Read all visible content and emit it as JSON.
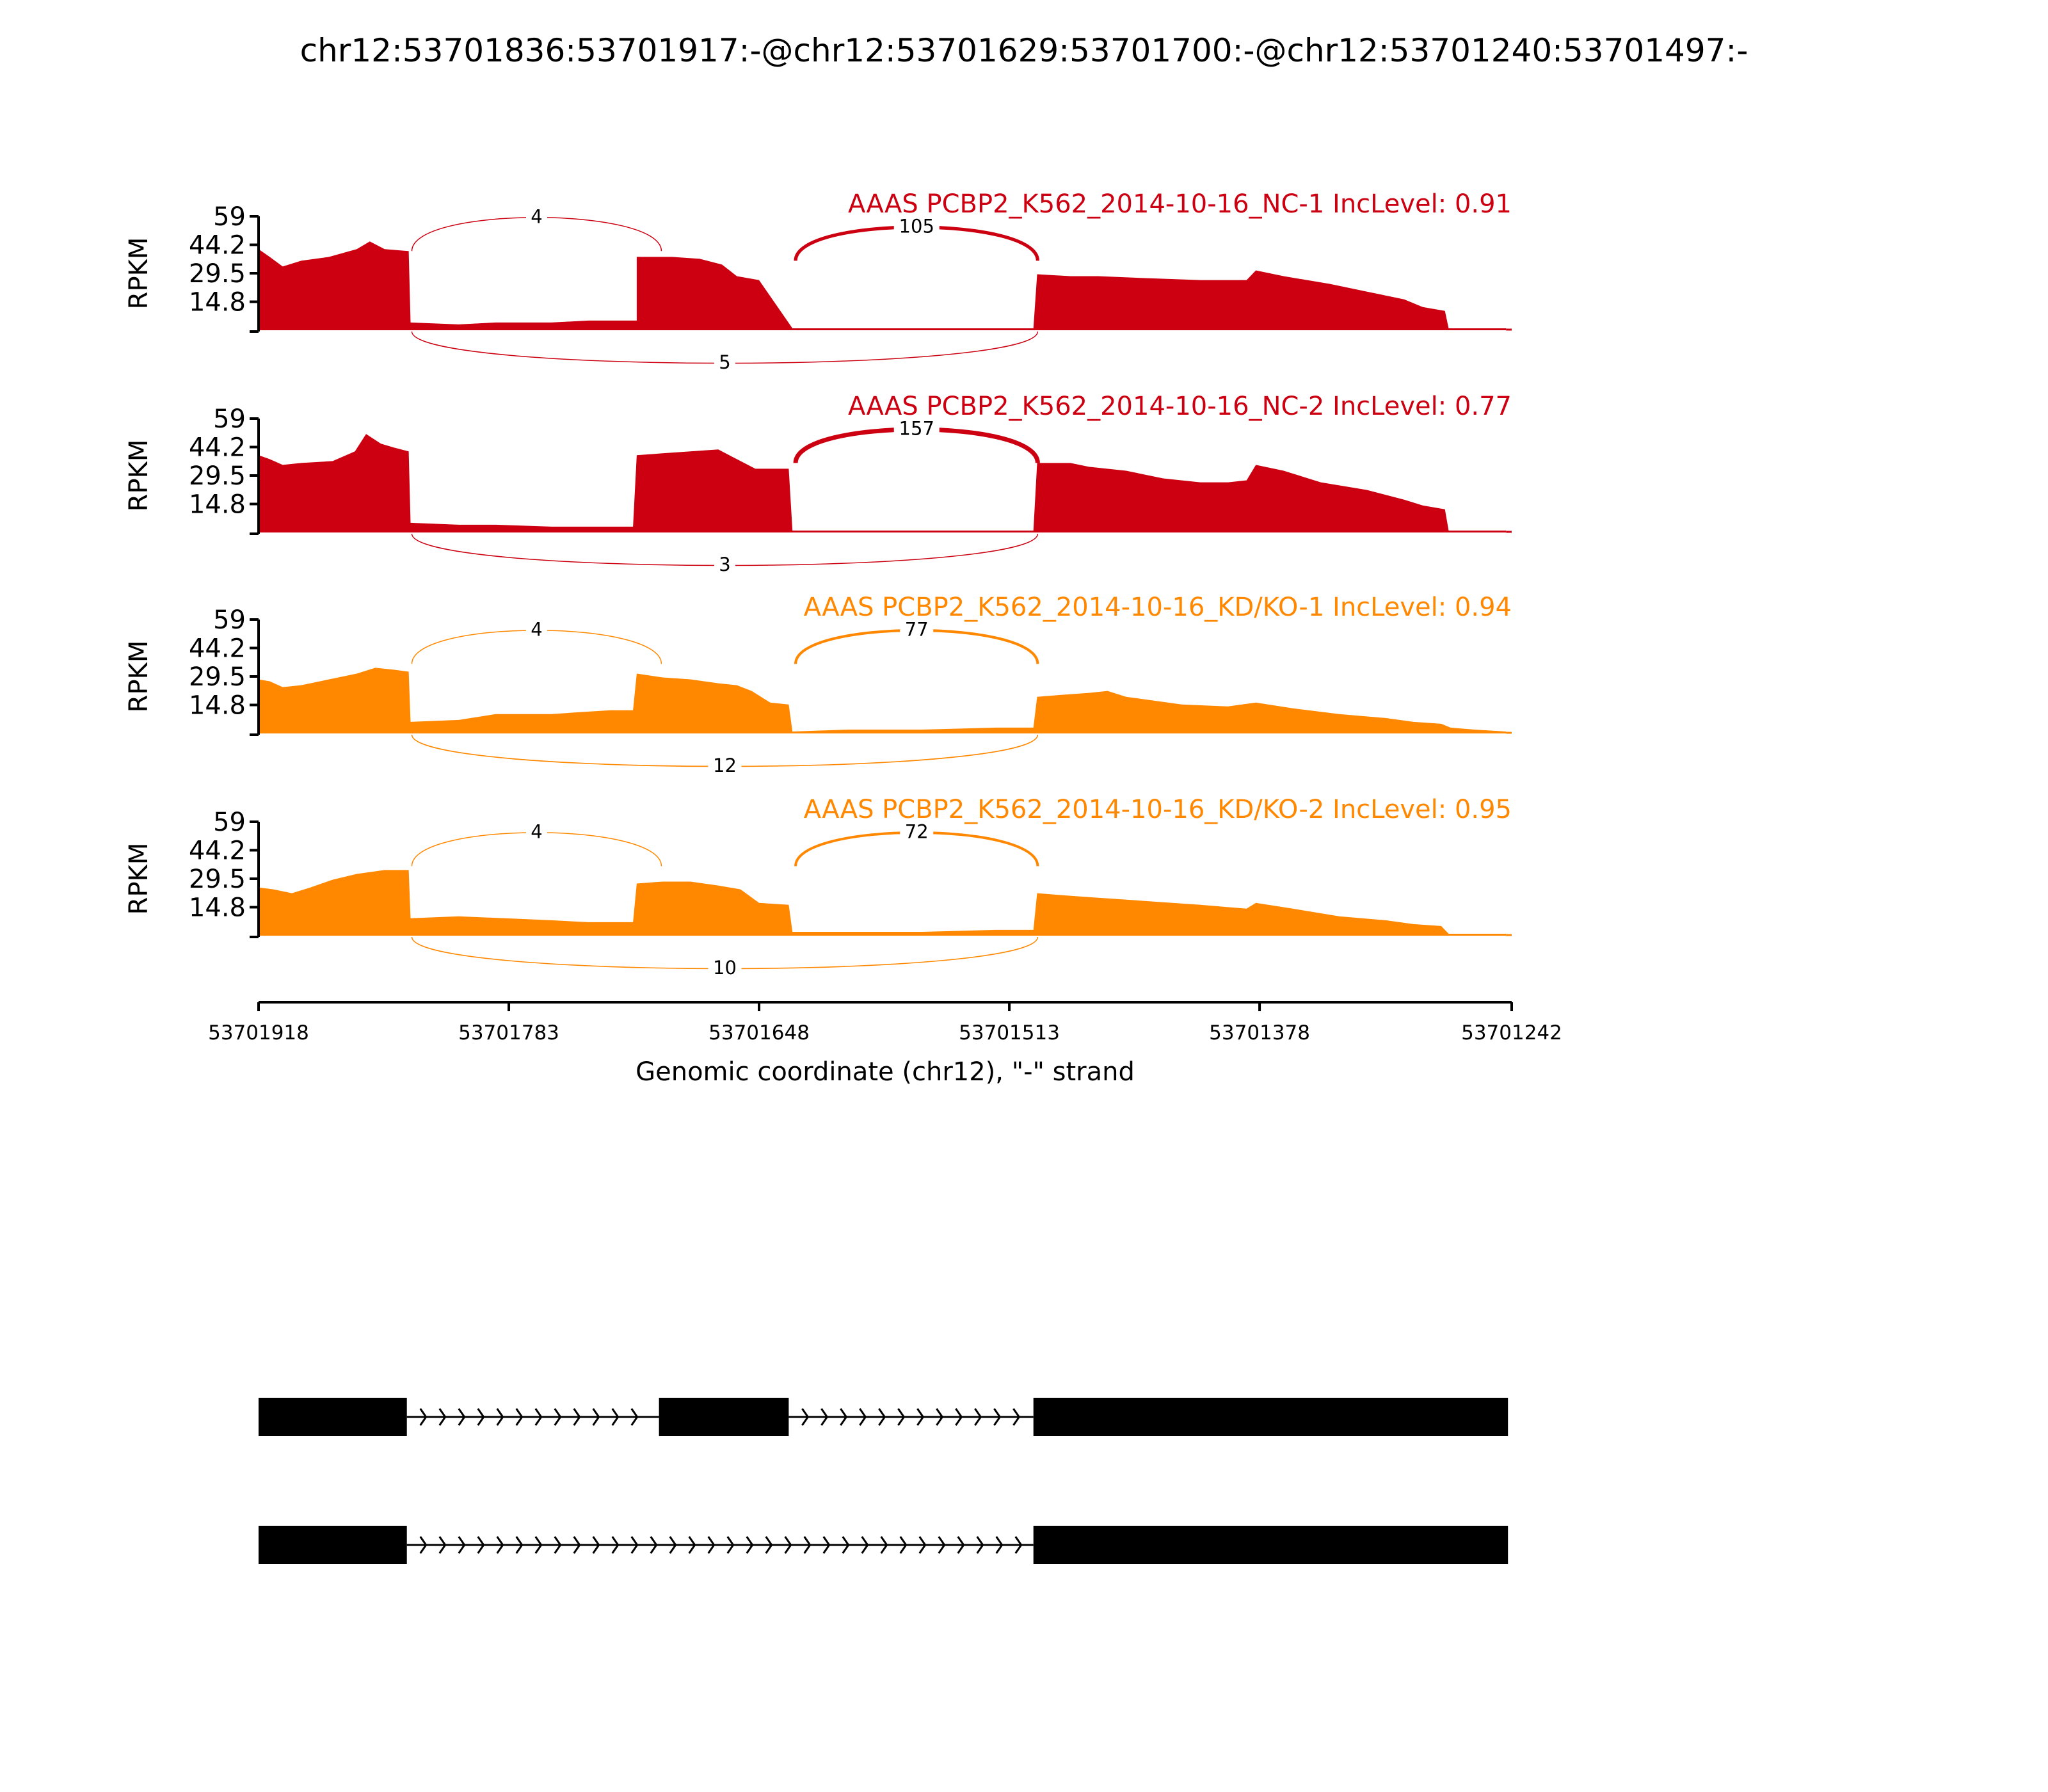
{
  "figure": {
    "title": "chr12:53701836:53701917:-@chr12:53701629:53701700:-@chr12:53701240:53701497:-"
  },
  "chart_data": {
    "type": "area",
    "title": "chr12:53701836:53701917:-@chr12:53701629:53701700:-@chr12:53701240:53701497:-",
    "ylabel": "RPKM",
    "xlabel": "Genomic coordinate (chr12), \"-\" strand",
    "xlim": [
      53701918,
      53701242
    ],
    "ylim": [
      0,
      59
    ],
    "yticks": [
      "59",
      "44.2",
      "29.5",
      "14.8"
    ],
    "xticks": [
      "53701918",
      "53701783",
      "53701648",
      "53701513",
      "53701378",
      "53701242"
    ],
    "exons": [
      [
        53701918,
        53701836
      ],
      [
        53701782,
        53701700
      ],
      [
        53701629,
        53701497
      ],
      [
        53701497,
        53701242
      ]
    ],
    "series": [
      {
        "name": "AAAS PCBP2_K562_2014-10-16_NC-1 IncLevel: 0.91",
        "color": "#cc0011",
        "coverage": [
          [
            53701918,
            42
          ],
          [
            53701912,
            38
          ],
          [
            53701905,
            33
          ],
          [
            53701895,
            36
          ],
          [
            53701880,
            38
          ],
          [
            53701865,
            42
          ],
          [
            53701858,
            46
          ],
          [
            53701850,
            42
          ],
          [
            53701837,
            41
          ],
          [
            53701836,
            4
          ],
          [
            53701810,
            3
          ],
          [
            53701790,
            4
          ],
          [
            53701760,
            4
          ],
          [
            53701740,
            5
          ],
          [
            53701715,
            5
          ],
          [
            53701716,
            5
          ],
          [
            53701714,
            5
          ],
          [
            53701714,
            38
          ],
          [
            53701695,
            38
          ],
          [
            53701680,
            37
          ],
          [
            53701668,
            34
          ],
          [
            53701660,
            28
          ],
          [
            53701648,
            26
          ],
          [
            53701630,
            1
          ],
          [
            53701600,
            1
          ],
          [
            53701560,
            1
          ],
          [
            53701530,
            1
          ],
          [
            53701500,
            1
          ],
          [
            53701498,
            29
          ],
          [
            53701480,
            28
          ],
          [
            53701465,
            28
          ],
          [
            53701440,
            27
          ],
          [
            53701410,
            26
          ],
          [
            53701385,
            26
          ],
          [
            53701380,
            31
          ],
          [
            53701365,
            28
          ],
          [
            53701340,
            24
          ],
          [
            53701320,
            20
          ],
          [
            53701300,
            16
          ],
          [
            53701290,
            12
          ],
          [
            53701278,
            10
          ],
          [
            53701276,
            1
          ],
          [
            53701245,
            1
          ]
        ],
        "junctions": [
          {
            "from": 53701836,
            "to": 53701700,
            "count": 4,
            "side": "top"
          },
          {
            "from": 53701629,
            "to": 53701497,
            "count": 105,
            "side": "top"
          },
          {
            "from": 53701836,
            "to": 53701497,
            "count": 5,
            "side": "bottom"
          }
        ]
      },
      {
        "name": "AAAS PCBP2_K562_2014-10-16_NC-2 IncLevel: 0.77",
        "color": "#cc0011",
        "coverage": [
          [
            53701918,
            40
          ],
          [
            53701912,
            38
          ],
          [
            53701905,
            35
          ],
          [
            53701895,
            36
          ],
          [
            53701878,
            37
          ],
          [
            53701866,
            42
          ],
          [
            53701860,
            51
          ],
          [
            53701852,
            46
          ],
          [
            53701845,
            44
          ],
          [
            53701837,
            42
          ],
          [
            53701836,
            5
          ],
          [
            53701810,
            4
          ],
          [
            53701790,
            4
          ],
          [
            53701760,
            3
          ],
          [
            53701735,
            3
          ],
          [
            53701716,
            3
          ],
          [
            53701714,
            40
          ],
          [
            53701700,
            41
          ],
          [
            53701685,
            42
          ],
          [
            53701670,
            43
          ],
          [
            53701660,
            38
          ],
          [
            53701650,
            33
          ],
          [
            53701632,
            33
          ],
          [
            53701630,
            1
          ],
          [
            53701600,
            1
          ],
          [
            53701560,
            1
          ],
          [
            53701520,
            1
          ],
          [
            53701500,
            1
          ],
          [
            53701498,
            36
          ],
          [
            53701480,
            36
          ],
          [
            53701470,
            34
          ],
          [
            53701450,
            32
          ],
          [
            53701430,
            28
          ],
          [
            53701410,
            26
          ],
          [
            53701395,
            26
          ],
          [
            53701385,
            27
          ],
          [
            53701380,
            35
          ],
          [
            53701365,
            32
          ],
          [
            53701345,
            26
          ],
          [
            53701320,
            22
          ],
          [
            53701300,
            17
          ],
          [
            53701290,
            14
          ],
          [
            53701278,
            12
          ],
          [
            53701276,
            1
          ],
          [
            53701245,
            1
          ]
        ],
        "junctions": [
          {
            "from": 53701629,
            "to": 53701497,
            "count": 157,
            "side": "top"
          },
          {
            "from": 53701836,
            "to": 53701497,
            "count": 3,
            "side": "bottom"
          }
        ]
      },
      {
        "name": "AAAS PCBP2_K562_2014-10-16_KD/KO-1 IncLevel: 0.94",
        "color": "#ff8800",
        "coverage": [
          [
            53701918,
            28
          ],
          [
            53701912,
            27
          ],
          [
            53701905,
            24
          ],
          [
            53701895,
            25
          ],
          [
            53701880,
            28
          ],
          [
            53701865,
            31
          ],
          [
            53701855,
            34
          ],
          [
            53701845,
            33
          ],
          [
            53701837,
            32
          ],
          [
            53701836,
            6
          ],
          [
            53701810,
            7
          ],
          [
            53701790,
            10
          ],
          [
            53701760,
            10
          ],
          [
            53701745,
            11
          ],
          [
            53701728,
            12
          ],
          [
            53701716,
            12
          ],
          [
            53701714,
            31
          ],
          [
            53701700,
            29
          ],
          [
            53701685,
            28
          ],
          [
            53701670,
            26
          ],
          [
            53701660,
            25
          ],
          [
            53701652,
            22
          ],
          [
            53701642,
            16
          ],
          [
            53701632,
            15
          ],
          [
            53701630,
            1
          ],
          [
            53701600,
            2
          ],
          [
            53701560,
            2
          ],
          [
            53701520,
            3
          ],
          [
            53701500,
            3
          ],
          [
            53701498,
            19
          ],
          [
            53701485,
            20
          ],
          [
            53701470,
            21
          ],
          [
            53701460,
            22
          ],
          [
            53701450,
            19
          ],
          [
            53701420,
            15
          ],
          [
            53701395,
            14
          ],
          [
            53701380,
            16
          ],
          [
            53701360,
            13
          ],
          [
            53701335,
            10
          ],
          [
            53701310,
            8
          ],
          [
            53701295,
            6
          ],
          [
            53701280,
            5
          ],
          [
            53701275,
            3
          ],
          [
            53701262,
            2
          ],
          [
            53701245,
            1
          ]
        ],
        "junctions": [
          {
            "from": 53701836,
            "to": 53701700,
            "count": 4,
            "side": "top"
          },
          {
            "from": 53701629,
            "to": 53701497,
            "count": 77,
            "side": "top"
          },
          {
            "from": 53701836,
            "to": 53701497,
            "count": 12,
            "side": "bottom"
          }
        ]
      },
      {
        "name": "AAAS PCBP2_K562_2014-10-16_KD/KO-2 IncLevel: 0.95",
        "color": "#ff8800",
        "coverage": [
          [
            53701918,
            25
          ],
          [
            53701910,
            24
          ],
          [
            53701900,
            22
          ],
          [
            53701890,
            25
          ],
          [
            53701878,
            29
          ],
          [
            53701865,
            32
          ],
          [
            53701850,
            34
          ],
          [
            53701837,
            34
          ],
          [
            53701836,
            9
          ],
          [
            53701810,
            10
          ],
          [
            53701785,
            9
          ],
          [
            53701760,
            8
          ],
          [
            53701740,
            7
          ],
          [
            53701716,
            7
          ],
          [
            53701714,
            27
          ],
          [
            53701700,
            28
          ],
          [
            53701685,
            28
          ],
          [
            53701670,
            26
          ],
          [
            53701658,
            24
          ],
          [
            53701648,
            17
          ],
          [
            53701632,
            16
          ],
          [
            53701630,
            2
          ],
          [
            53701600,
            2
          ],
          [
            53701560,
            2
          ],
          [
            53701520,
            3
          ],
          [
            53701500,
            3
          ],
          [
            53701498,
            22
          ],
          [
            53701485,
            21
          ],
          [
            53701470,
            20
          ],
          [
            53701440,
            18
          ],
          [
            53701410,
            16
          ],
          [
            53701385,
            14
          ],
          [
            53701380,
            17
          ],
          [
            53701360,
            14
          ],
          [
            53701335,
            10
          ],
          [
            53701310,
            8
          ],
          [
            53701295,
            6
          ],
          [
            53701280,
            5
          ],
          [
            53701276,
            1
          ],
          [
            53701245,
            1
          ]
        ],
        "junctions": [
          {
            "from": 53701836,
            "to": 53701700,
            "count": 4,
            "side": "top"
          },
          {
            "from": 53701629,
            "to": 53701497,
            "count": 72,
            "side": "top"
          },
          {
            "from": 53701836,
            "to": 53701497,
            "count": 10,
            "side": "bottom"
          }
        ]
      }
    ],
    "isoforms": [
      {
        "exons": [
          [
            53701918,
            53701838
          ],
          [
            53701702,
            53701632
          ],
          [
            53701500,
            53701244
          ]
        ]
      },
      {
        "exons": [
          [
            53701918,
            53701838
          ],
          [
            53701500,
            53701244
          ]
        ]
      }
    ]
  }
}
